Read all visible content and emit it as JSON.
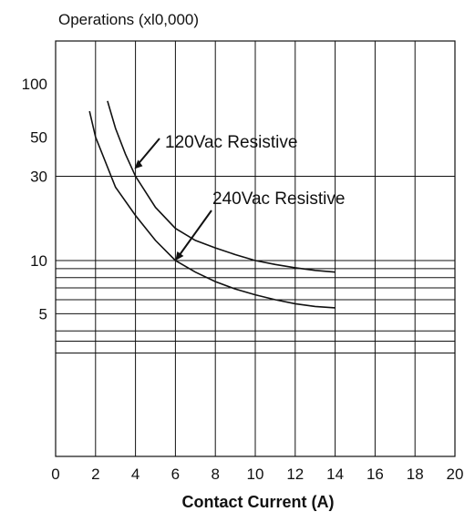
{
  "chart_data": {
    "type": "line",
    "title": "",
    "ylabel": "Operations (xl0,000)",
    "xlabel": "Contact Current (A)",
    "x_scale": "linear",
    "y_scale": "log",
    "xlim": [
      0,
      20
    ],
    "ylim": [
      1,
      200
    ],
    "x_ticks": [
      "0",
      "2",
      "4",
      "6",
      "8",
      "10",
      "12",
      "14",
      "16",
      "18",
      "20"
    ],
    "y_ticks": [
      {
        "value": 100,
        "label": "100"
      },
      {
        "value": 50,
        "label": "50"
      },
      {
        "value": 30,
        "label": "30"
      },
      {
        "value": 10,
        "label": "10"
      },
      {
        "value": 5,
        "label": "5"
      }
    ],
    "vertical_grid": [
      2,
      4,
      6,
      8,
      10,
      12,
      14,
      16,
      18
    ],
    "horizontal_grid": [
      30,
      10,
      9,
      8,
      7,
      6,
      5,
      4,
      3.5,
      3
    ],
    "series": [
      {
        "name": "120Vac Resistive",
        "x": [
          2.6,
          3,
          3.5,
          4,
          5,
          6,
          7,
          8,
          9,
          10,
          11,
          12,
          13,
          14
        ],
        "y": [
          80,
          56,
          40,
          30,
          20,
          15.2,
          13,
          11.8,
          10.8,
          10,
          9.5,
          9.1,
          8.8,
          8.6
        ]
      },
      {
        "name": "240Vac Resistive",
        "x": [
          1.7,
          2,
          3,
          4,
          5,
          6,
          7,
          8,
          9,
          10,
          11,
          12,
          13,
          14
        ],
        "y": [
          70,
          50,
          26,
          18,
          13,
          10,
          8.6,
          7.6,
          6.9,
          6.4,
          6.0,
          5.7,
          5.5,
          5.4
        ]
      }
    ],
    "annotations": [
      {
        "text": "120Vac Resistive",
        "points_to": {
          "x": 3.9,
          "y": 33
        }
      },
      {
        "text": "240Vac Resistive",
        "points_to": {
          "x": 6,
          "y": 10
        }
      }
    ],
    "legend": "none"
  }
}
